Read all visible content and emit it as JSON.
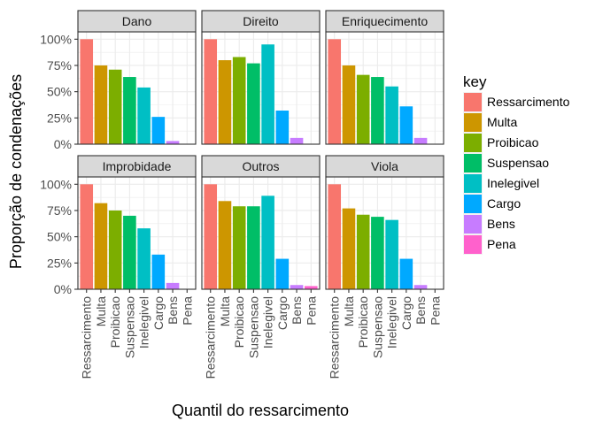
{
  "chart_data": {
    "type": "bar",
    "facet_layout": "2 rows x 3 columns",
    "categories": [
      "Ressarcimento",
      "Multa",
      "Proibicao",
      "Suspensao",
      "Inelegivel",
      "Cargo",
      "Bens",
      "Pena"
    ],
    "ylim": [
      0,
      1.07
    ],
    "yticks": [
      0,
      0.25,
      0.5,
      0.75,
      1.0
    ],
    "ytick_labels": [
      "0%",
      "25%",
      "50%",
      "75%",
      "100%"
    ],
    "xlabel": "Quantil do ressarcimento",
    "ylabel": "Proporção de condenações",
    "grid": true,
    "legend": {
      "title": "key",
      "position": "right",
      "entries": [
        "Ressarcimento",
        "Multa",
        "Proibicao",
        "Suspensao",
        "Inelegivel",
        "Cargo",
        "Bens",
        "Pena"
      ]
    },
    "colors": {
      "Ressarcimento": "#F8766D",
      "Multa": "#CD9600",
      "Proibicao": "#7CAE00",
      "Suspensao": "#00BE67",
      "Inelegivel": "#00BFC4",
      "Cargo": "#00A9FF",
      "Bens": "#C77CFF",
      "Pena": "#FF61CC"
    },
    "panels": [
      {
        "title": "Dano",
        "values": [
          1.0,
          0.75,
          0.71,
          0.64,
          0.54,
          0.26,
          0.03,
          0
        ]
      },
      {
        "title": "Direito",
        "values": [
          1.0,
          0.8,
          0.83,
          0.77,
          0.95,
          0.32,
          0.06,
          0
        ]
      },
      {
        "title": "Enriquecimento",
        "values": [
          1.0,
          0.75,
          0.66,
          0.64,
          0.55,
          0.36,
          0.06,
          0
        ]
      },
      {
        "title": "Improbidade",
        "values": [
          1.0,
          0.82,
          0.75,
          0.7,
          0.58,
          0.33,
          0.06,
          0
        ]
      },
      {
        "title": "Outros",
        "values": [
          1.0,
          0.84,
          0.79,
          0.79,
          0.89,
          0.29,
          0.04,
          0.03
        ]
      },
      {
        "title": "Viola",
        "values": [
          1.0,
          0.77,
          0.71,
          0.69,
          0.66,
          0.29,
          0.04,
          0
        ]
      }
    ]
  }
}
